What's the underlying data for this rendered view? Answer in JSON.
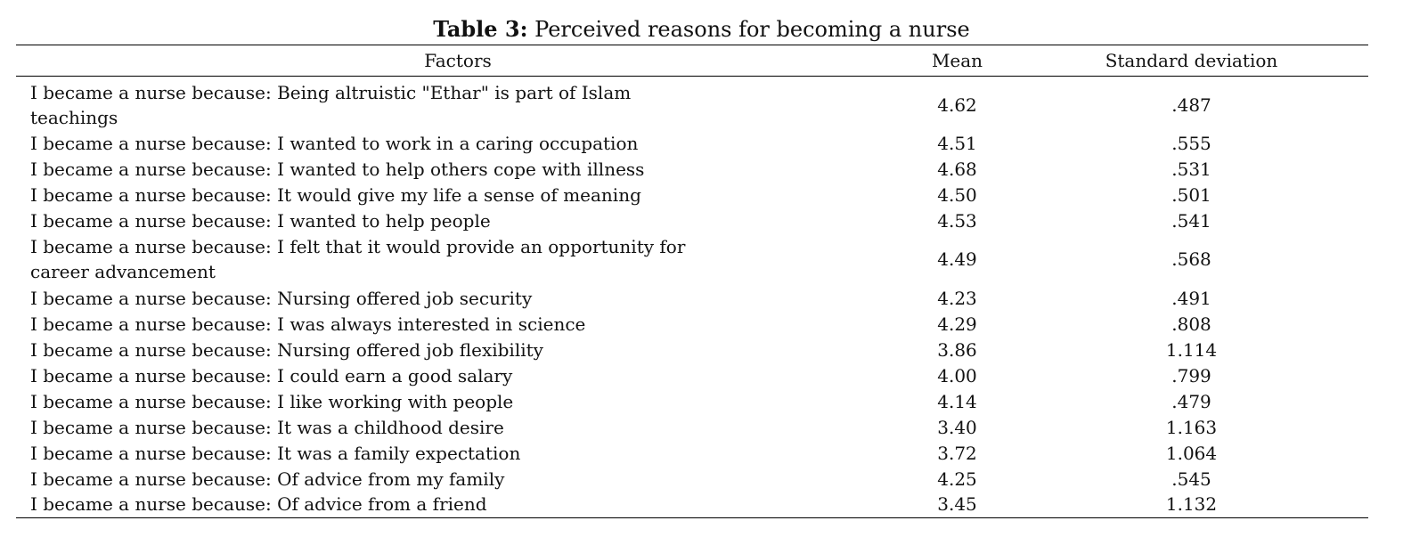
{
  "caption": {
    "label": "Table 3:",
    "text": "Perceived reasons for becoming a nurse"
  },
  "table": {
    "headers": {
      "factors": "Factors",
      "mean": "Mean",
      "sd": "Standard deviation"
    },
    "rows": [
      {
        "factor": "I became a nurse because: Being altruistic \"Ethar\" is part of Islam teachings",
        "mean": "4.62",
        "sd": ".487"
      },
      {
        "factor": "I became a nurse because: I wanted to work in a caring occupation",
        "mean": "4.51",
        "sd": ".555"
      },
      {
        "factor": "I became a nurse because: I wanted to help others cope with illness",
        "mean": "4.68",
        "sd": ".531"
      },
      {
        "factor": "I became a nurse because: It would give my life a sense of meaning",
        "mean": "4.50",
        "sd": ".501"
      },
      {
        "factor": "I became a nurse because: I wanted to help people",
        "mean": "4.53",
        "sd": ".541"
      },
      {
        "factor": "I became a nurse because: I felt that it would provide an opportunity for career advancement",
        "mean": "4.49",
        "sd": ".568"
      },
      {
        "factor": "I became a nurse because: Nursing offered job security",
        "mean": "4.23",
        "sd": ".491"
      },
      {
        "factor": "I became a nurse because: I was always interested in science",
        "mean": "4.29",
        "sd": ".808"
      },
      {
        "factor": "I became a nurse because: Nursing offered job flexibility",
        "mean": "3.86",
        "sd": "1.114"
      },
      {
        "factor": "I became a nurse because: I could earn a good salary",
        "mean": "4.00",
        "sd": ".799"
      },
      {
        "factor": "I became a nurse because: I like working with people",
        "mean": "4.14",
        "sd": ".479"
      },
      {
        "factor": "I became a nurse because: It was a childhood desire",
        "mean": "3.40",
        "sd": "1.163"
      },
      {
        "factor": "I became a nurse because: It was a family expectation",
        "mean": "3.72",
        "sd": "1.064"
      },
      {
        "factor": "I became a nurse because: Of advice from my family",
        "mean": "4.25",
        "sd": ".545"
      },
      {
        "factor": "I became a nurse because: Of advice from a friend",
        "mean": "3.45",
        "sd": "1.132"
      }
    ]
  }
}
